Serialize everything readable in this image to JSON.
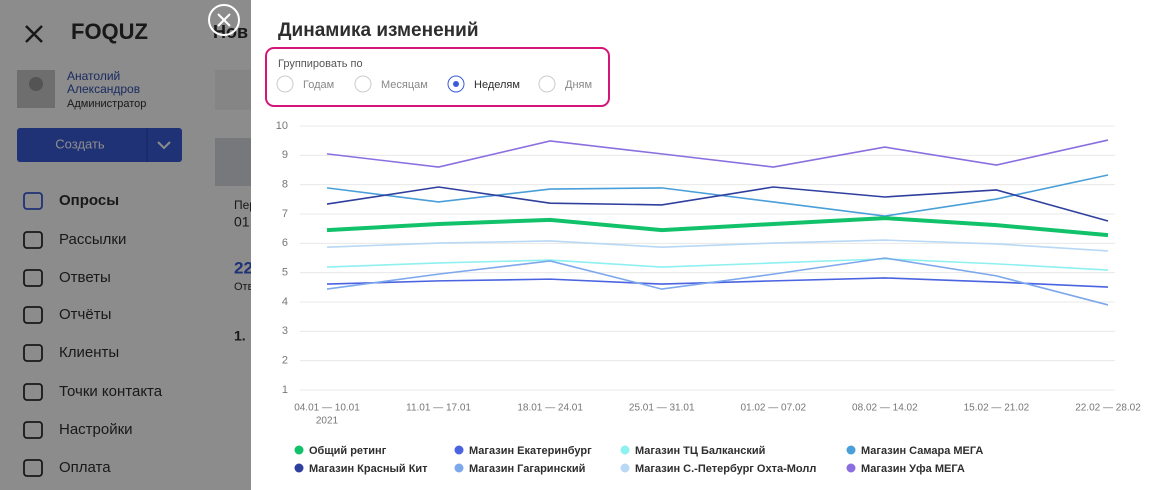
{
  "sidebar": {
    "logo": "FOQUZ",
    "user": {
      "first_name": "Анатолий",
      "last_name": "Александров",
      "role": "Администратор"
    },
    "create_button": "Создать",
    "menu": [
      "Опросы",
      "Рассылки",
      "Ответы",
      "Отчёты",
      "Клиенты",
      "Точки контакта",
      "Настройки",
      "Оплата"
    ]
  },
  "background": {
    "fragments": [
      "Нов",
      "Пер",
      "01.",
      "22",
      "Отв",
      "1."
    ]
  },
  "modal": {
    "title": "Динамика изменений",
    "group_by": {
      "label": "Группировать по",
      "options": [
        "Годам",
        "Месяцам",
        "Неделям",
        "Дням"
      ],
      "selected": 2
    }
  },
  "chart_data": {
    "type": "line",
    "categories": [
      "04.01 — 10.01",
      "11.01 — 17.01",
      "18.01 — 24.01",
      "25.01 — 31.01",
      "01.02 — 07.02",
      "08.02 — 14.02",
      "15.02 — 21.02",
      "22.02 — 28.02"
    ],
    "first_category_year": "2021",
    "ylim": [
      1,
      10
    ],
    "yticks": [
      1,
      2,
      3,
      4,
      5,
      6,
      7,
      8,
      9,
      10
    ],
    "grid": true,
    "series": [
      {
        "name": "Общий ретинг",
        "color": "#12c26a",
        "values": [
          6.45,
          6.66,
          6.8,
          6.45,
          6.66,
          6.86,
          6.62,
          6.28
        ]
      },
      {
        "name": "Магазин Екатеринбург",
        "color": "#4a63e0",
        "values": [
          4.61,
          4.72,
          4.78,
          4.61,
          4.72,
          4.82,
          4.68,
          4.51
        ]
      },
      {
        "name": "Магазин ТЦ Балканский",
        "color": "#8ef0f0",
        "values": [
          5.19,
          5.33,
          5.43,
          5.19,
          5.33,
          5.47,
          5.3,
          5.09
        ]
      },
      {
        "name": "Магазин Самара МЕГА",
        "color": "#4a9fd8",
        "values": [
          7.89,
          7.41,
          7.85,
          7.89,
          7.41,
          6.93,
          7.51,
          8.33
        ]
      },
      {
        "name": "Магазин Красный Кит",
        "color": "#2f3f9e",
        "values": [
          7.34,
          7.92,
          7.37,
          7.31,
          7.92,
          7.58,
          7.82,
          6.76
        ]
      },
      {
        "name": "Магазин Гагаринский",
        "color": "#7ea8ec",
        "values": [
          4.44,
          4.95,
          5.4,
          4.44,
          4.95,
          5.5,
          4.89,
          3.9
        ]
      },
      {
        "name": "Магазин С.-Петербург Охта-Молл",
        "color": "#b8d8f5",
        "values": [
          5.87,
          6.01,
          6.08,
          5.87,
          6.01,
          6.11,
          5.98,
          5.74
        ]
      },
      {
        "name": "Магазин Уфа МЕГА",
        "color": "#8b6fe0",
        "values": [
          9.05,
          8.6,
          9.49,
          9.05,
          8.6,
          9.28,
          8.67,
          9.52
        ]
      }
    ]
  }
}
